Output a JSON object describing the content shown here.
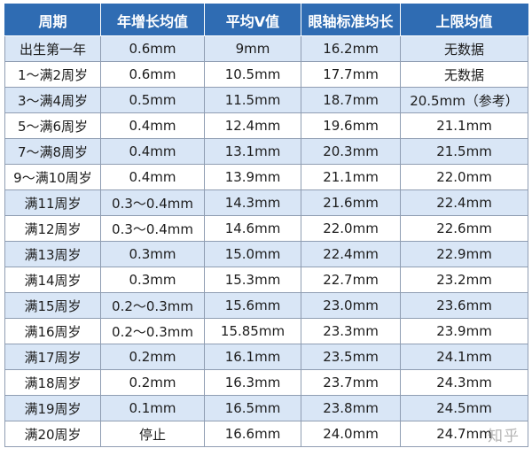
{
  "table": {
    "columns": [
      "周期",
      "年增长均值",
      "平均V值",
      "眼轴标准均长",
      "上限均值"
    ],
    "rows": [
      [
        "出生第一年",
        "0.6mm",
        "9mm",
        "16.2mm",
        "无数据"
      ],
      [
        "1～满2周岁",
        "0.6mm",
        "10.5mm",
        "17.7mm",
        "无数据"
      ],
      [
        "3～满4周岁",
        "0.5mm",
        "11.5mm",
        "18.7mm",
        "20.5mm（参考）"
      ],
      [
        "5～满6周岁",
        "0.4mm",
        "12.4mm",
        "19.6mm",
        "21.1mm"
      ],
      [
        "7～满8周岁",
        "0.4mm",
        "13.1mm",
        "20.3mm",
        "21.5mm"
      ],
      [
        "9～满10周岁",
        "0.4mm",
        "13.9mm",
        "21.1mm",
        "22.0mm"
      ],
      [
        "满11周岁",
        "0.3～0.4mm",
        "14.3mm",
        "21.6mm",
        "22.4mm"
      ],
      [
        "满12周岁",
        "0.3～0.4mm",
        "14.6mm",
        "22.0mm",
        "22.6mm"
      ],
      [
        "满13周岁",
        "0.3mm",
        "15.0mm",
        "22.4mm",
        "22.9mm"
      ],
      [
        "满14周岁",
        "0.3mm",
        "15.3mm",
        "22.7mm",
        "23.2mm"
      ],
      [
        "满15周岁",
        "0.2～0.3mm",
        "15.6mm",
        "23.0mm",
        "23.6mm"
      ],
      [
        "满16周岁",
        "0.2～0.3mm",
        "15.85mm",
        "23.3mm",
        "23.9mm"
      ],
      [
        "满17周岁",
        "0.2mm",
        "16.1mm",
        "23.5mm",
        "24.1mm"
      ],
      [
        "满18周岁",
        "0.2mm",
        "16.3mm",
        "23.7mm",
        "24.3mm"
      ],
      [
        "满19周岁",
        "0.1mm",
        "16.5mm",
        "23.8mm",
        "24.5mm"
      ],
      [
        "满20周岁",
        "停止",
        "16.6mm",
        "24.0mm",
        "24.7mm"
      ]
    ]
  },
  "watermark": "知乎",
  "colors": {
    "header_bg": "#2f6cb3",
    "header_text": "#ffffff",
    "stripe_bg": "#d9e6f6",
    "plain_bg": "#ffffff",
    "text": "#1c1c1c"
  }
}
